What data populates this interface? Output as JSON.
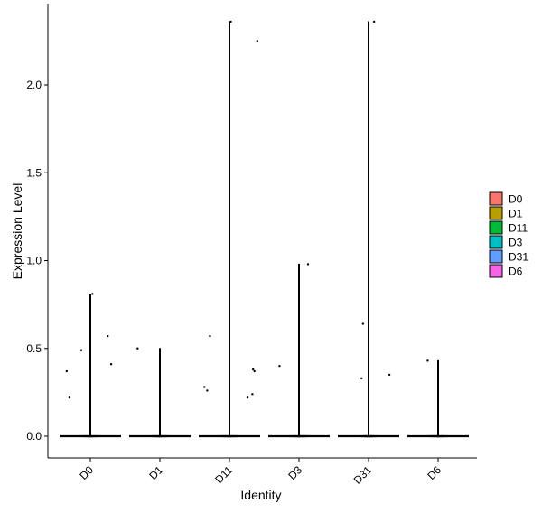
{
  "chart_data": {
    "type": "violin",
    "xlabel": "Identity",
    "ylabel": "Expression Level",
    "categories": [
      "D0",
      "D1",
      "D11",
      "D3",
      "D31",
      "D6"
    ],
    "colors": {
      "D0": "#F8766D",
      "D1": "#B79F00",
      "D11": "#00BA38",
      "D3": "#00BFC4",
      "D31": "#619CFF",
      "D6": "#F564E3"
    },
    "yticks": [
      "0.0",
      "0.5",
      "1.0",
      "1.5",
      "2.0"
    ],
    "ylim": [
      -0.12,
      2.42
    ],
    "legend_placement": "right",
    "grid": false,
    "violins": [
      {
        "group": "D0",
        "max": 0.81
      },
      {
        "group": "D1",
        "max": 0.5
      },
      {
        "group": "D11",
        "max": 2.36
      },
      {
        "group": "D3",
        "max": 0.98
      },
      {
        "group": "D31",
        "max": 2.36
      },
      {
        "group": "D6",
        "max": 0.43
      }
    ],
    "points": [
      {
        "group": "D0",
        "jitter": -0.34,
        "y": 0.37
      },
      {
        "group": "D0",
        "jitter": -0.3,
        "y": 0.22
      },
      {
        "group": "D0",
        "jitter": -0.13,
        "y": 0.49
      },
      {
        "group": "D0",
        "jitter": 0.03,
        "y": 0.81
      },
      {
        "group": "D0",
        "jitter": 0.25,
        "y": 0.57
      },
      {
        "group": "D0",
        "jitter": 0.3,
        "y": 0.41
      },
      {
        "group": "D1",
        "jitter": -0.32,
        "y": 0.5
      },
      {
        "group": "D11",
        "jitter": -0.36,
        "y": 0.28
      },
      {
        "group": "D11",
        "jitter": -0.32,
        "y": 0.26
      },
      {
        "group": "D11",
        "jitter": -0.28,
        "y": 0.57
      },
      {
        "group": "D11",
        "jitter": 0.02,
        "y": 2.36
      },
      {
        "group": "D11",
        "jitter": 0.26,
        "y": 0.22
      },
      {
        "group": "D11",
        "jitter": 0.33,
        "y": 0.24
      },
      {
        "group": "D11",
        "jitter": 0.34,
        "y": 0.38
      },
      {
        "group": "D11",
        "jitter": 0.36,
        "y": 0.37
      },
      {
        "group": "D11",
        "jitter": 0.4,
        "y": 2.25
      },
      {
        "group": "D3",
        "jitter": -0.28,
        "y": 0.4
      },
      {
        "group": "D3",
        "jitter": 0.13,
        "y": 0.98
      },
      {
        "group": "D31",
        "jitter": -0.1,
        "y": 0.33
      },
      {
        "group": "D31",
        "jitter": -0.08,
        "y": 0.64
      },
      {
        "group": "D31",
        "jitter": 0.08,
        "y": 2.36
      },
      {
        "group": "D31",
        "jitter": 0.3,
        "y": 0.35
      },
      {
        "group": "D6",
        "jitter": -0.15,
        "y": 0.43
      }
    ]
  }
}
